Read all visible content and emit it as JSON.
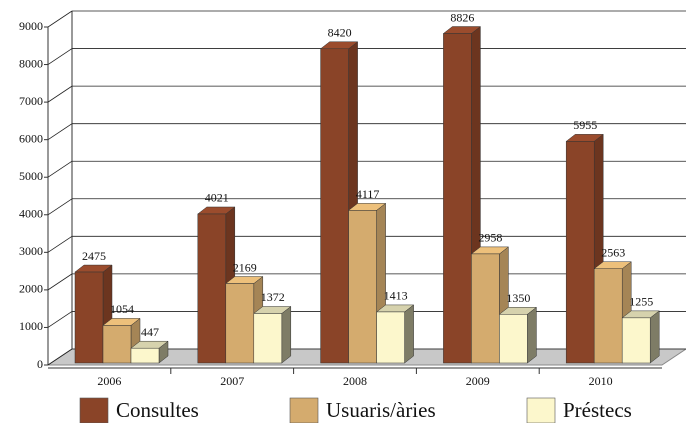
{
  "chart_data": {
    "type": "bar3d",
    "categories": [
      "2006",
      "2007",
      "2008",
      "2009",
      "2010"
    ],
    "series": [
      {
        "name": "Consultes",
        "color": "#8a4428",
        "values": [
          2475,
          4021,
          8420,
          8826,
          5955
        ]
      },
      {
        "name": "Usuaris/àries",
        "color": "#d4ab6e",
        "values": [
          1054,
          2169,
          4117,
          2958,
          2563
        ]
      },
      {
        "name": "Préstecs",
        "color": "#fcf7cc",
        "values": [
          447,
          1372,
          1413,
          1350,
          1255
        ]
      }
    ],
    "ylim": [
      0,
      9000
    ],
    "yticks": [
      0,
      1000,
      2000,
      3000,
      4000,
      5000,
      6000,
      7000,
      8000,
      9000
    ],
    "grid": true
  }
}
